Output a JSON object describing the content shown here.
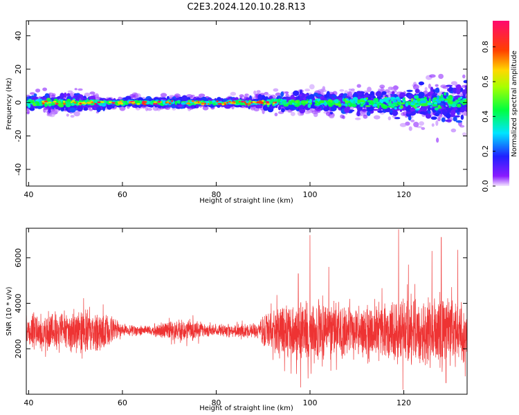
{
  "figure": {
    "title": "C2E3.2024.120.10.28.R13"
  },
  "chart_data": [
    {
      "type": "heatmap",
      "panel": "spectrogram",
      "xlabel": "Height of straight line (km)",
      "ylabel": "Frequency (Hz)",
      "xlim": [
        39.5,
        133.5
      ],
      "ylim": [
        -50,
        49
      ],
      "x_ticks": [
        40,
        60,
        80,
        100,
        120
      ],
      "y_ticks": [
        -40,
        -20,
        0,
        20,
        40
      ],
      "colorbar": {
        "label": "Normalized spectral amplitude",
        "range": [
          0,
          0.95
        ],
        "ticks": [
          0.0,
          0.2,
          0.4,
          0.6,
          0.8
        ],
        "colormap": "gist_rainbow_r",
        "placement": "right"
      },
      "band_center_hz": 0,
      "band_half_width_hz": [
        [
          40,
          6
        ],
        [
          48,
          7
        ],
        [
          56,
          5
        ],
        [
          58,
          3
        ],
        [
          75,
          4
        ],
        [
          80,
          3
        ],
        [
          90,
          5
        ],
        [
          96,
          8
        ],
        [
          110,
          8
        ],
        [
          118,
          12
        ],
        [
          124,
          14
        ],
        [
          130,
          17
        ],
        [
          133.5,
          15
        ]
      ]
    },
    {
      "type": "line",
      "panel": "snr",
      "xlabel": "Height of straight line (km)",
      "ylabel": "SNR (10 * v/v)",
      "xlim": [
        39.5,
        133.5
      ],
      "ylim": [
        0,
        7300
      ],
      "x_ticks": [
        40,
        60,
        80,
        100,
        120
      ],
      "y_ticks": [
        2000,
        4000,
        6000
      ],
      "series": [
        {
          "color": "#ee3333",
          "mean": 2800,
          "envelope_half_range": [
            [
              40,
              900
            ],
            [
              45,
              1000
            ],
            [
              50,
              1100
            ],
            [
              55,
              1050
            ],
            [
              58,
              650
            ],
            [
              60,
              300
            ],
            [
              65,
              230
            ],
            [
              70,
              450
            ],
            [
              75,
              550
            ],
            [
              78,
              300
            ],
            [
              85,
              350
            ],
            [
              89,
              400
            ],
            [
              92,
              1200
            ],
            [
              97,
              1500
            ],
            [
              100,
              1600
            ],
            [
              105,
              1400
            ],
            [
              110,
              1300
            ],
            [
              115,
              1500
            ],
            [
              120,
              1600
            ],
            [
              125,
              1700
            ],
            [
              130,
              1700
            ],
            [
              133.5,
              1500
            ]
          ],
          "spikes": [
            [
              100,
              7000
            ],
            [
              118.9,
              7250
            ],
            [
              128,
              6900
            ],
            [
              126,
              6300
            ],
            [
              131.5,
              6350
            ],
            [
              97.5,
              5300
            ],
            [
              104,
              5600
            ],
            [
              121,
              5700
            ],
            [
              131,
              1200
            ],
            [
              100.2,
              900
            ],
            [
              98,
              300
            ],
            [
              119.8,
              200
            ],
            [
              129,
              500
            ],
            [
              124,
              1500
            ]
          ]
        }
      ]
    }
  ]
}
